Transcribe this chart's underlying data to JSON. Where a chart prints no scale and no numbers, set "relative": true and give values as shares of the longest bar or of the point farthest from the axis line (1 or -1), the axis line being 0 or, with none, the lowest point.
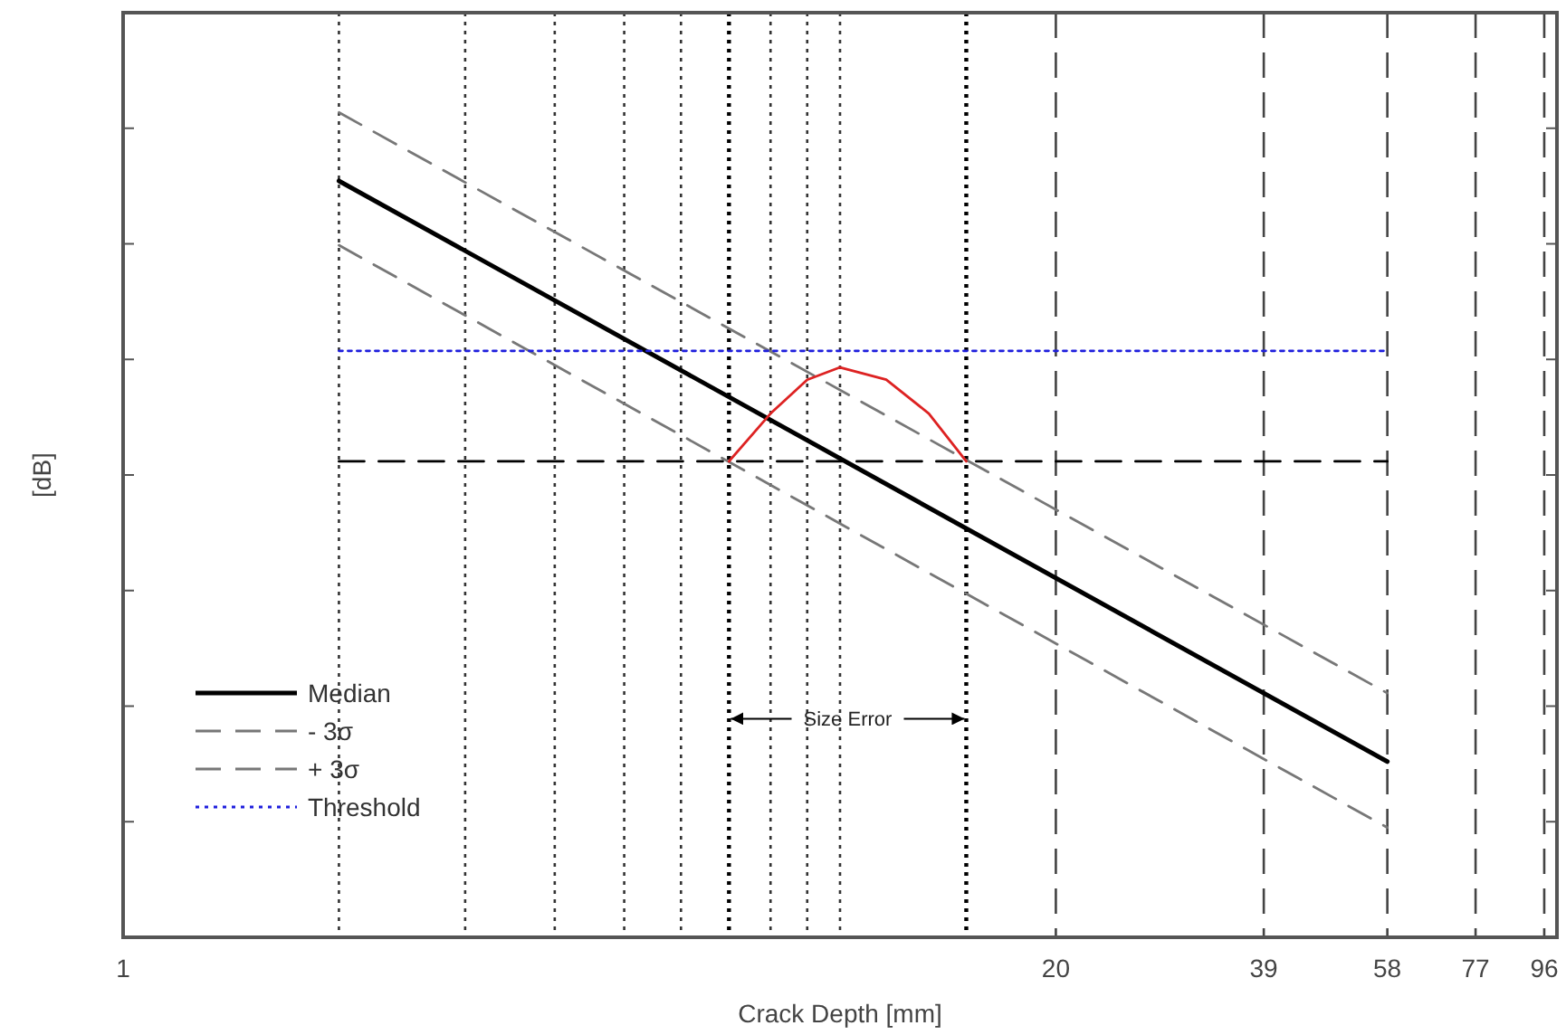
{
  "chart_data": {
    "type": "line",
    "xlabel": "Crack Depth [mm]",
    "ylabel": "[dB]",
    "log": "x",
    "xlim": [
      1,
      100
    ],
    "xticks": [
      1,
      20,
      39,
      58,
      77,
      96
    ],
    "tick_labels": "x",
    "relative": true,
    "grid": false,
    "legend": "bottom left",
    "series": [
      {
        "name": "Median",
        "color": "#000000",
        "line_style": "solid",
        "x": [
          2,
          58
        ],
        "values": [
          0.917,
          0.213
        ]
      },
      {
        "name": "- 3σ",
        "color": "#777777",
        "line_style": "dashed",
        "x": [
          2,
          58
        ],
        "values": [
          0.839,
          0.133
        ]
      },
      {
        "name": "+ 3σ",
        "color": "#777777",
        "line_style": "dashed",
        "x": [
          2,
          58
        ],
        "values": [
          1,
          0.296
        ]
      },
      {
        "name": "Threshold",
        "color": "#1f1fdd",
        "line_style": "dotted",
        "x": [
          2,
          58
        ],
        "values": [
          0.711,
          0.711
        ]
      },
      {
        "color": "#000000",
        "line_style": "dashed",
        "x": [
          2,
          58
        ],
        "values": [
          0.577,
          0.577
        ]
      },
      {
        "color": "#dd2222",
        "line_style": "solid",
        "x": [
          7,
          8,
          9,
          10,
          11.6,
          13.3,
          15
        ],
        "values": [
          0.577,
          0.635,
          0.676,
          0.691,
          0.676,
          0.635,
          0.577
        ]
      }
    ],
    "ref_lines": [
      {
        "axis": "x",
        "value": 2,
        "color": "#333333",
        "line_style": "dotted"
      },
      {
        "axis": "x",
        "value": 3,
        "color": "#333333",
        "line_style": "dotted"
      },
      {
        "axis": "x",
        "value": 4,
        "color": "#333333",
        "line_style": "dotted"
      },
      {
        "axis": "x",
        "value": 5,
        "color": "#333333",
        "line_style": "dotted"
      },
      {
        "axis": "x",
        "value": 6,
        "color": "#333333",
        "line_style": "dotted"
      },
      {
        "axis": "x",
        "value": 7,
        "color": "#000000",
        "line_style": "dotted"
      },
      {
        "axis": "x",
        "value": 8,
        "color": "#333333",
        "line_style": "dotted"
      },
      {
        "axis": "x",
        "value": 9,
        "color": "#333333",
        "line_style": "dotted"
      },
      {
        "axis": "x",
        "value": 10,
        "color": "#333333",
        "line_style": "dotted"
      },
      {
        "axis": "x",
        "value": 15,
        "color": "#000000",
        "line_style": "dotted"
      },
      {
        "axis": "x",
        "value": 20,
        "color": "#444444",
        "line_style": "dashed"
      },
      {
        "axis": "x",
        "value": 39,
        "color": "#444444",
        "line_style": "dashed"
      },
      {
        "axis": "x",
        "value": 58,
        "color": "#444444",
        "line_style": "dashed"
      },
      {
        "axis": "x",
        "value": 77,
        "color": "#444444",
        "line_style": "dashed"
      },
      {
        "axis": "x",
        "value": 96,
        "color": "#444444",
        "line_style": "dashed"
      }
    ],
    "annotations": [
      {
        "text": "Size Error",
        "x": 10.25,
        "y": 0.265
      }
    ]
  }
}
